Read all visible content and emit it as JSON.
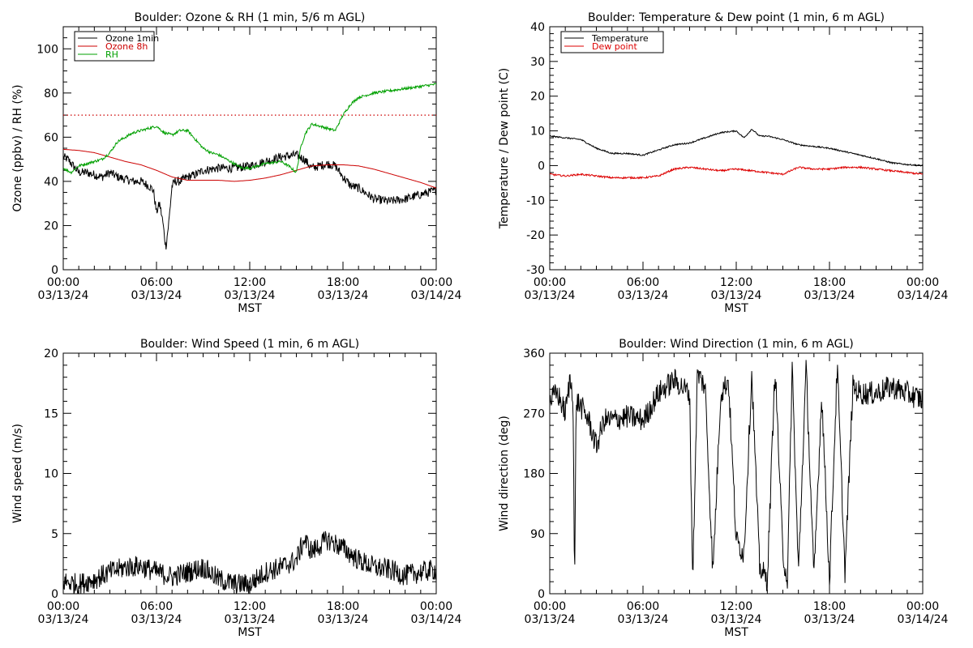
{
  "chart_data": [
    {
      "id": "ozone_rh",
      "type": "line",
      "title": "Boulder: Ozone & RH (1 min, 5/6 m AGL)",
      "ylabel": "Ozone (ppbv) / RH (%)",
      "xlabel": "MST",
      "ylim": [
        0,
        110
      ],
      "xlim": [
        0,
        24
      ],
      "yticks": [
        0,
        20,
        40,
        60,
        80,
        100
      ],
      "xticks": [
        {
          "h": 0,
          "time": "00:00",
          "date": "03/13/24"
        },
        {
          "h": 6,
          "time": "06:00",
          "date": "03/13/24"
        },
        {
          "h": 12,
          "time": "12:00",
          "date": "03/13/24"
        },
        {
          "h": 18,
          "time": "18:00",
          "date": "03/13/24"
        },
        {
          "h": 24,
          "time": "00:00",
          "date": "03/14/24"
        }
      ],
      "legend": "top-left",
      "reference_line": {
        "y": 70,
        "color": "#cc0000",
        "style": "dotted"
      },
      "series": [
        {
          "name": "Ozone 1min",
          "color": "#000000",
          "noise": 2.0,
          "x": [
            0,
            0.3,
            1,
            1.5,
            2,
            2.5,
            3,
            3.5,
            4,
            4.5,
            5,
            5.5,
            5.8,
            6,
            6.2,
            6.4,
            6.6,
            6.8,
            7,
            7.2,
            7.5,
            8,
            8.5,
            9,
            10,
            11,
            12,
            13,
            14,
            15,
            15.5,
            16,
            17,
            17.5,
            18,
            18.5,
            19,
            20,
            21,
            22,
            23,
            24
          ],
          "y": [
            51,
            50,
            44,
            44,
            43,
            42,
            44,
            42,
            41,
            40,
            40,
            38,
            36,
            26,
            30,
            22,
            10,
            22,
            38,
            40,
            40,
            42,
            43,
            45,
            46,
            46,
            47,
            49,
            51,
            52,
            50,
            46,
            48,
            47,
            42,
            38,
            37,
            32,
            31,
            32,
            34,
            36
          ]
        },
        {
          "name": "Ozone 8h",
          "color": "#cc0000",
          "noise": 0,
          "x": [
            0,
            1,
            2,
            3,
            4,
            5,
            6,
            7,
            8,
            9,
            10,
            11,
            12,
            13,
            14,
            15,
            16,
            17,
            18,
            19,
            20,
            21,
            22,
            23,
            24
          ],
          "y": [
            54.5,
            54,
            53,
            51,
            49,
            47.5,
            45,
            42,
            40.5,
            40.5,
            40.5,
            40,
            40.5,
            41.5,
            43,
            45,
            47,
            47.5,
            47.5,
            47,
            45.5,
            43.5,
            41.5,
            39.5,
            37
          ]
        },
        {
          "name": "RH",
          "color": "#00a000",
          "noise": 0.6,
          "x": [
            0,
            0.5,
            1,
            1.5,
            2,
            2.5,
            3,
            3.5,
            4,
            4.5,
            5,
            5.5,
            6,
            6.5,
            7,
            7.5,
            8,
            8.5,
            9,
            9.5,
            10,
            10.5,
            11,
            11.5,
            12,
            13,
            14,
            14.5,
            15,
            15.3,
            15.6,
            16,
            16.5,
            17,
            17.5,
            18,
            18.5,
            19,
            20,
            21,
            22,
            23,
            24
          ],
          "y": [
            46,
            44,
            47,
            48,
            49,
            50,
            53,
            58,
            60,
            62,
            63,
            64,
            65,
            62,
            61,
            63,
            63,
            59,
            55,
            53,
            52,
            50,
            48,
            46,
            46,
            48,
            49,
            47,
            44,
            56,
            62,
            66,
            65,
            64,
            63,
            70,
            75,
            78,
            80,
            81,
            82,
            83,
            84
          ]
        }
      ]
    },
    {
      "id": "temp_dew",
      "type": "line",
      "title": "Boulder: Temperature & Dew point (1 min, 6 m AGL)",
      "ylabel": "Temperature / Dew point (C)",
      "xlabel": "MST",
      "ylim": [
        -30,
        40
      ],
      "xlim": [
        0,
        24
      ],
      "yticks": [
        -30,
        -20,
        -10,
        0,
        10,
        20,
        30,
        40
      ],
      "xticks": [
        {
          "h": 0,
          "time": "00:00",
          "date": "03/13/24"
        },
        {
          "h": 6,
          "time": "06:00",
          "date": "03/13/24"
        },
        {
          "h": 12,
          "time": "12:00",
          "date": "03/13/24"
        },
        {
          "h": 18,
          "time": "18:00",
          "date": "03/13/24"
        },
        {
          "h": 24,
          "time": "00:00",
          "date": "03/14/24"
        }
      ],
      "legend": "top-left",
      "series": [
        {
          "name": "Temperature",
          "color": "#000000",
          "noise": 0.2,
          "x": [
            0,
            1,
            2,
            3,
            4,
            5,
            6,
            7,
            8,
            9,
            10,
            11,
            12,
            12.5,
            13,
            13.5,
            14,
            15,
            16,
            17,
            18,
            19,
            20,
            21,
            22,
            23,
            24
          ],
          "y": [
            8.5,
            8,
            7.5,
            5,
            3.5,
            3.5,
            3,
            4.5,
            6,
            6.5,
            8,
            9.5,
            10,
            8,
            10.5,
            8.5,
            8.5,
            7.5,
            6,
            5.5,
            5,
            4,
            3,
            2,
            0.8,
            0.3,
            0
          ]
        },
        {
          "name": "Dew point",
          "color": "#dd0000",
          "noise": 0.25,
          "x": [
            0,
            1,
            2,
            3,
            4,
            5,
            6,
            7,
            8,
            9,
            10,
            11,
            12,
            13,
            14,
            15,
            16,
            17,
            18,
            19,
            20,
            21,
            22,
            23,
            24
          ],
          "y": [
            -2.5,
            -3,
            -2.5,
            -3,
            -3.5,
            -3.5,
            -3.5,
            -3,
            -1,
            -0.5,
            -1,
            -1.5,
            -1,
            -1.5,
            -2,
            -2.5,
            -0.5,
            -1,
            -1,
            -0.5,
            -0.5,
            -1,
            -1.5,
            -2,
            -2.5
          ]
        }
      ]
    },
    {
      "id": "wind_speed",
      "type": "line",
      "title": "Boulder: Wind Speed (1 min, 6 m AGL)",
      "ylabel": "Wind speed (m/s)",
      "xlabel": "MST",
      "ylim": [
        0,
        20
      ],
      "xlim": [
        0,
        24
      ],
      "yticks": [
        0,
        5,
        10,
        15,
        20
      ],
      "xticks": [
        {
          "h": 0,
          "time": "00:00",
          "date": "03/13/24"
        },
        {
          "h": 6,
          "time": "06:00",
          "date": "03/13/24"
        },
        {
          "h": 12,
          "time": "12:00",
          "date": "03/13/24"
        },
        {
          "h": 18,
          "time": "18:00",
          "date": "03/13/24"
        },
        {
          "h": 24,
          "time": "00:00",
          "date": "03/14/24"
        }
      ],
      "series": [
        {
          "name": "",
          "color": "#000000",
          "noise": 0.9,
          "floor": 0,
          "x": [
            0,
            1,
            2,
            3,
            4,
            5,
            6,
            7,
            8,
            9,
            10,
            11,
            12,
            13,
            14,
            15,
            15.5,
            16,
            17,
            18,
            19,
            20,
            21,
            22,
            23,
            24
          ],
          "y": [
            1,
            0.8,
            1.2,
            1.8,
            2.2,
            2.3,
            1.8,
            1.4,
            1.8,
            2.2,
            1.2,
            0.8,
            0.8,
            1.8,
            2.2,
            2.8,
            4.5,
            3.5,
            4.5,
            3.8,
            2.8,
            2.2,
            2,
            1.5,
            1.8,
            2
          ]
        }
      ]
    },
    {
      "id": "wind_dir",
      "type": "line",
      "title": "Boulder: Wind Direction (1 min, 6 m AGL)",
      "ylabel": "Wind direction (deg)",
      "xlabel": "MST",
      "ylim": [
        0,
        360
      ],
      "xlim": [
        0,
        24
      ],
      "yticks": [
        0,
        90,
        180,
        270,
        360
      ],
      "xticks": [
        {
          "h": 0,
          "time": "00:00",
          "date": "03/13/24"
        },
        {
          "h": 6,
          "time": "06:00",
          "date": "03/13/24"
        },
        {
          "h": 12,
          "time": "12:00",
          "date": "03/13/24"
        },
        {
          "h": 18,
          "time": "18:00",
          "date": "03/13/24"
        },
        {
          "h": 24,
          "time": "00:00",
          "date": "03/14/24"
        }
      ],
      "series": [
        {
          "name": "",
          "color": "#000000",
          "noise": 18,
          "floor": 0,
          "ceil": 360,
          "x": [
            0,
            0.5,
            1,
            1.3,
            1.5,
            1.6,
            1.7,
            2,
            2.5,
            3,
            3.5,
            4,
            5,
            6,
            6.3,
            6.5,
            7,
            8,
            9,
            9.2,
            9.5,
            10,
            10.5,
            11,
            11.5,
            12,
            12.5,
            13,
            13.5,
            14,
            14.5,
            15,
            15.3,
            15.6,
            16,
            16.5,
            17,
            17.5,
            18,
            18.5,
            19,
            19.5,
            20,
            21,
            22,
            23,
            24
          ],
          "y": [
            290,
            300,
            270,
            320,
            300,
            0,
            290,
            280,
            260,
            220,
            260,
            260,
            265,
            260,
            270,
            280,
            300,
            320,
            300,
            20,
            330,
            310,
            30,
            300,
            320,
            80,
            60,
            330,
            40,
            20,
            340,
            60,
            20,
            340,
            30,
            340,
            20,
            300,
            20,
            340,
            30,
            310,
            300,
            300,
            310,
            300,
            290
          ]
        }
      ]
    }
  ]
}
